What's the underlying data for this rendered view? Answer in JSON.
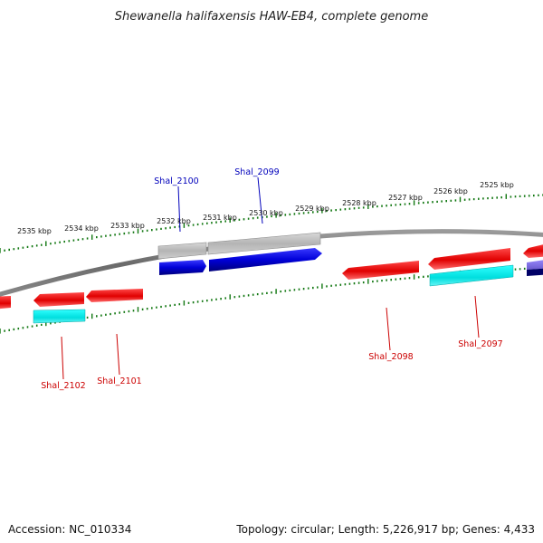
{
  "title": "Shewanella halifaxensis HAW-EB4, complete genome",
  "footer": {
    "accession": "Accession: NC_010334",
    "summary": "Topology: circular; Length: 5,226,917 bp; Genes: 4,433"
  },
  "colors": {
    "forward_cds": "#0000cc",
    "reverse_cds": "#ee0000",
    "rna_cyan": "#00e5e5",
    "gray_feature": "#b8b8b8",
    "backbone": "#707070",
    "tick_green": "#117711",
    "label_blue": "#0000bb",
    "label_red": "#cc0000"
  },
  "upper_ticks": [
    {
      "label": "2535 kbp",
      "kb": 2535
    },
    {
      "label": "2534 kbp",
      "kb": 2534
    },
    {
      "label": "2533 kbp",
      "kb": 2533
    },
    {
      "label": "2532 kbp",
      "kb": 2532
    },
    {
      "label": "2531 kbp",
      "kb": 2531
    },
    {
      "label": "2530 kbp",
      "kb": 2530
    },
    {
      "label": "2529 kbp",
      "kb": 2529
    },
    {
      "label": "2528 kbp",
      "kb": 2528
    },
    {
      "label": "2527 kbp",
      "kb": 2527
    },
    {
      "label": "2526 kbp",
      "kb": 2526
    },
    {
      "label": "2525 kbp",
      "kb": 2525
    }
  ],
  "gene_labels": [
    {
      "name": "Shal_2100",
      "strand": "forward"
    },
    {
      "name": "Shal_2099",
      "strand": "forward"
    },
    {
      "name": "Shal_2102",
      "strand": "reverse"
    },
    {
      "name": "Shal_2101",
      "strand": "reverse"
    },
    {
      "name": "Shal_2098",
      "strand": "reverse"
    },
    {
      "name": "Shal_2097",
      "strand": "reverse"
    }
  ]
}
